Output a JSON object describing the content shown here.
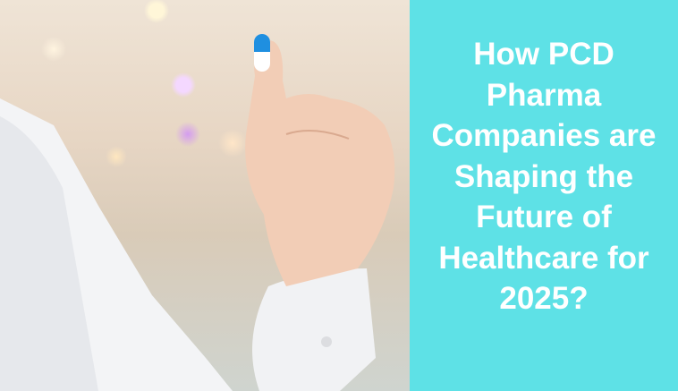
{
  "banner": {
    "title_lines": [
      "How PCD",
      "Pharma",
      "Companies are",
      "Shaping the",
      "Future of",
      "Healthcare for",
      "2025?"
    ],
    "panel_color": "#5ee1e6",
    "photo": "hand-holding-capsule"
  }
}
